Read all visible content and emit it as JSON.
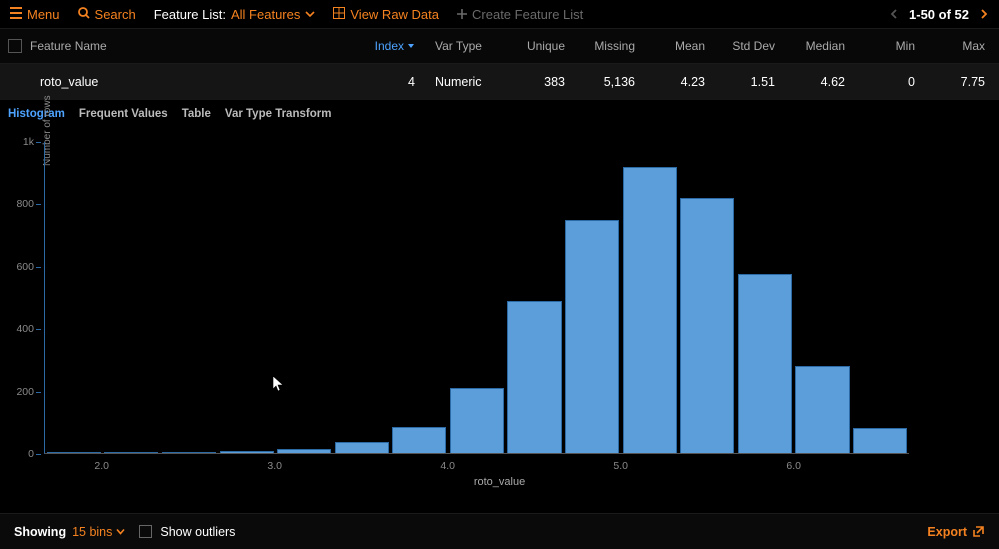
{
  "toolbar": {
    "menu_label": "Menu",
    "search_label": "Search",
    "feature_list_label": "Feature List:",
    "feature_list_value": "All Features",
    "view_raw_data_label": "View Raw Data",
    "create_feature_list_label": "Create Feature List",
    "page_range": "1-50 of 52"
  },
  "table": {
    "headers": {
      "feature_name": "Feature Name",
      "index": "Index",
      "var_type": "Var Type",
      "unique": "Unique",
      "missing": "Missing",
      "mean": "Mean",
      "std_dev": "Std Dev",
      "median": "Median",
      "min": "Min",
      "max": "Max"
    },
    "row": {
      "name": "roto_value",
      "index": "4",
      "var_type": "Numeric",
      "unique": "383",
      "missing": "5,136",
      "mean": "4.23",
      "std_dev": "1.51",
      "median": "4.62",
      "min": "0",
      "max": "7.75"
    }
  },
  "subtabs": {
    "t1": "Histogram",
    "t2": "Frequent Values",
    "t3": "Table",
    "t4": "Var Type Transform"
  },
  "chart": {
    "type": "histogram",
    "y_axis_label": "Number of rows",
    "x_axis_label": "roto_value",
    "ylim_max": 1000,
    "y_ticks": [
      {
        "value": 1000,
        "label": "1k"
      },
      {
        "value": 800,
        "label": "800"
      },
      {
        "value": 600,
        "label": "600"
      },
      {
        "value": 400,
        "label": "400"
      },
      {
        "value": 200,
        "label": "200"
      },
      {
        "value": 0,
        "label": "0"
      }
    ],
    "x_tick_labels_at_bar_boundaries": [
      {
        "label": "2.0",
        "left_bars": 1
      },
      {
        "label": "3.0",
        "left_bars": 4
      },
      {
        "label": "4.0",
        "left_bars": 7
      },
      {
        "label": "5.0",
        "left_bars": 10
      },
      {
        "label": "6.0",
        "left_bars": 13
      }
    ],
    "bars": [
      {
        "value": 3
      },
      {
        "value": 3
      },
      {
        "value": 4
      },
      {
        "value": 6
      },
      {
        "value": 12
      },
      {
        "value": 35
      },
      {
        "value": 85
      },
      {
        "value": 210
      },
      {
        "value": 490
      },
      {
        "value": 750
      },
      {
        "value": 920
      },
      {
        "value": 820
      },
      {
        "value": 575
      },
      {
        "value": 280
      },
      {
        "value": 80
      }
    ],
    "bar_fill_color": "#5c9ed9",
    "bar_border_color": "#2c6aa5",
    "axis_color": "#2c6aa5",
    "background_color": "#000000"
  },
  "footer": {
    "showing_label": "Showing",
    "bins_text": "15 bins",
    "show_outliers_label": "Show outliers",
    "export_label": "Export"
  },
  "colors": {
    "accent_orange": "#f58220",
    "accent_blue": "#4da3ff",
    "text_muted": "#6a6a6a"
  }
}
